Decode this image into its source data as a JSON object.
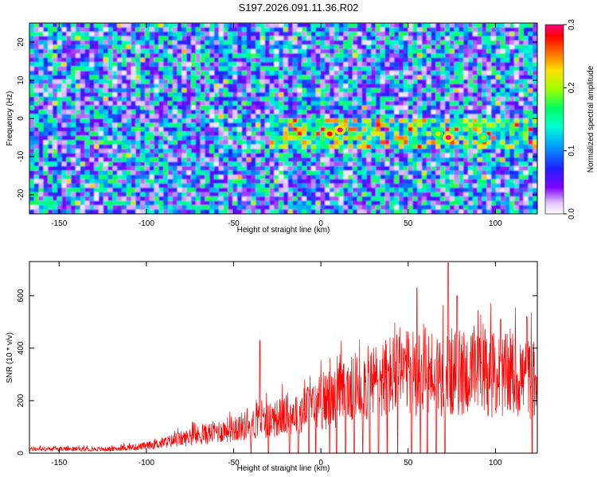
{
  "title": "S197.2026.091.11.36.R02",
  "chart_data": [
    {
      "type": "heatmap",
      "xlabel": "Height of straight line (km)",
      "ylabel": "Frequency (Hz)",
      "xlim": [
        -167,
        124
      ],
      "ylim": [
        -25,
        25
      ],
      "x_ticks": [
        -150,
        -100,
        -50,
        0,
        50,
        100
      ],
      "y_ticks": [
        -20,
        -10,
        0,
        10,
        20
      ],
      "colorbar": {
        "label": "Normalized spectral amplitude",
        "range": [
          0.0,
          0.3
        ],
        "ticks": [
          "0.0",
          "0.1",
          "0.2",
          "0.3"
        ],
        "colors": [
          "#ffffff",
          "#8000ff",
          "#0000ff",
          "#00c0ff",
          "#00ff80",
          "#80ff00",
          "#ffff00",
          "#ff8000",
          "#ff0000",
          "#ff0080"
        ]
      },
      "features": {
        "signal_band_freq_hz": -4,
        "signal_band_from_km": -30,
        "hot_spots": [
          {
            "x": 5,
            "y": -4,
            "value": 0.28
          },
          {
            "x": 11,
            "y": -3,
            "value": 0.3
          },
          {
            "x": 67,
            "y": -4,
            "value": 0.22
          },
          {
            "x": 73,
            "y": -5,
            "value": 0.3
          },
          {
            "x": 93,
            "y": -5,
            "value": 0.2
          }
        ]
      }
    },
    {
      "type": "line",
      "xlabel": "Height of straight line (km)",
      "ylabel": "SNR (10 * v/v)",
      "xlim": [
        -167,
        124
      ],
      "ylim": [
        0,
        730
      ],
      "x_ticks": [
        -150,
        -100,
        -50,
        0,
        50,
        100
      ],
      "y_ticks": [
        0,
        200,
        400,
        600
      ],
      "color": "#ff0000",
      "envelope": [
        {
          "x": -167,
          "y": 20
        },
        {
          "x": -120,
          "y": 20
        },
        {
          "x": -100,
          "y": 35
        },
        {
          "x": -80,
          "y": 70
        },
        {
          "x": -60,
          "y": 105
        },
        {
          "x": -40,
          "y": 140
        },
        {
          "x": -20,
          "y": 185
        },
        {
          "x": 0,
          "y": 240
        },
        {
          "x": 20,
          "y": 320
        },
        {
          "x": 40,
          "y": 380
        },
        {
          "x": 60,
          "y": 400
        },
        {
          "x": 80,
          "y": 395
        },
        {
          "x": 100,
          "y": 385
        },
        {
          "x": 124,
          "y": 360
        }
      ],
      "peaks": [
        {
          "x": -35,
          "y": 430
        },
        {
          "x": 5,
          "y": 475
        },
        {
          "x": 38,
          "y": 545
        },
        {
          "x": 55,
          "y": 630
        },
        {
          "x": 73,
          "y": 725
        },
        {
          "x": 78,
          "y": 600
        },
        {
          "x": 103,
          "y": 510
        },
        {
          "x": 118,
          "y": 520
        }
      ],
      "dropouts_to_zero": [
        -40,
        -30,
        -18,
        -13,
        -7,
        -3,
        5,
        9,
        14,
        19,
        24,
        28,
        33,
        38,
        44,
        52,
        57,
        61,
        66,
        71,
        121
      ]
    }
  ]
}
